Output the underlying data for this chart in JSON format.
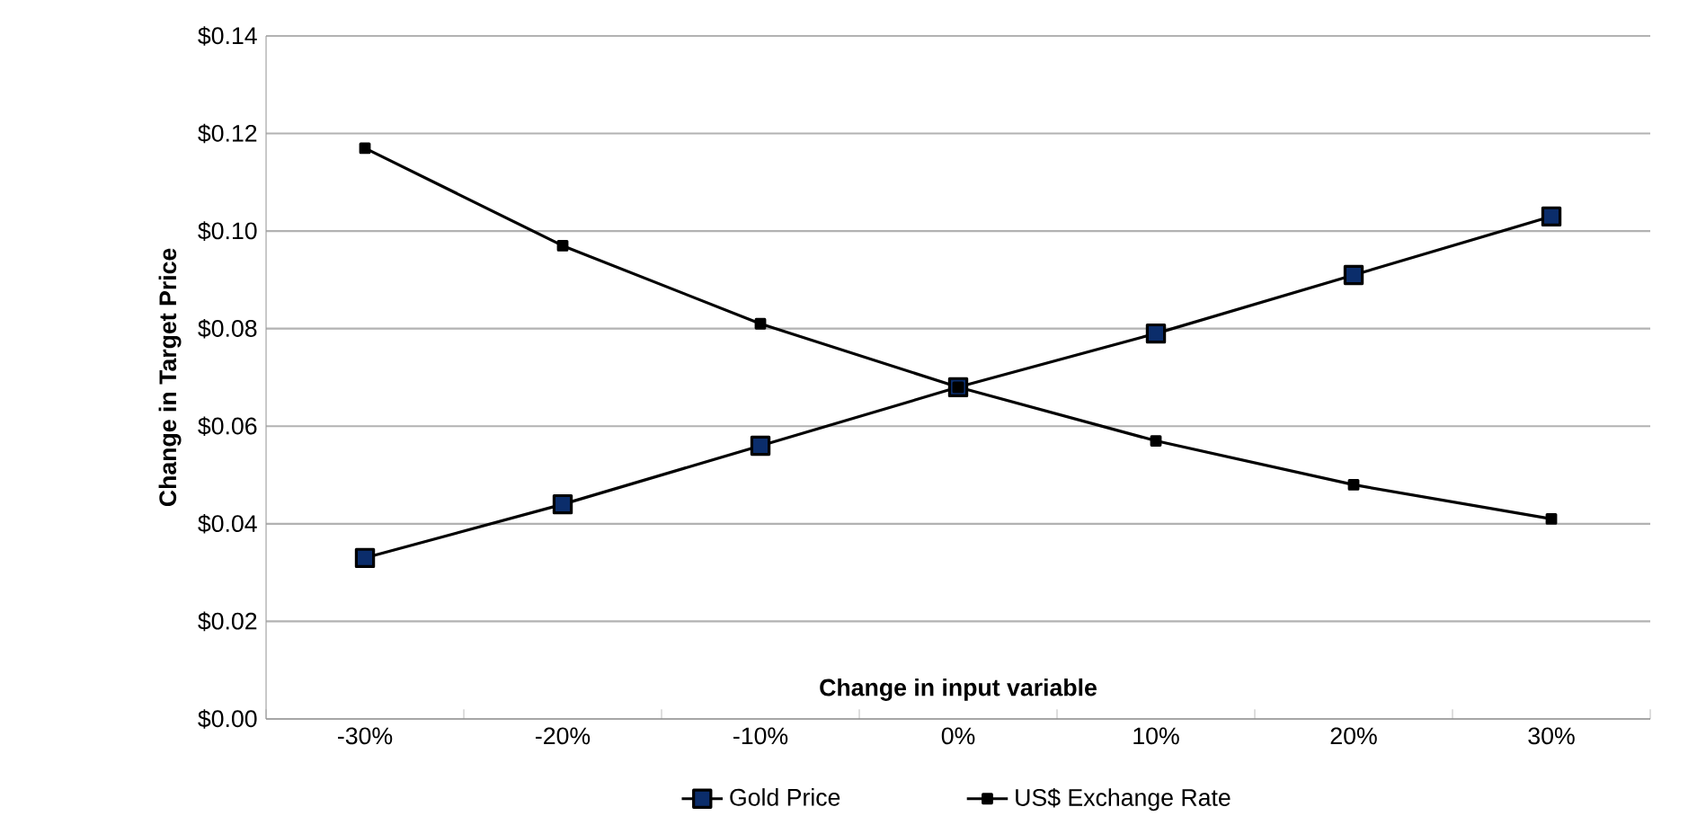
{
  "chart_data": {
    "type": "line",
    "xlabel": "Change in input variable",
    "ylabel": "Change in Target Price",
    "categories": [
      "-30%",
      "-20%",
      "-10%",
      "0%",
      "10%",
      "20%",
      "30%"
    ],
    "series": [
      {
        "name": "Gold Price",
        "color": "#0b2d6b",
        "values": [
          0.033,
          0.044,
          0.056,
          0.068,
          0.079,
          0.091,
          0.103
        ]
      },
      {
        "name": "US$ Exchange Rate",
        "color": "#000000",
        "values": [
          0.117,
          0.097,
          0.081,
          0.068,
          0.057,
          0.048,
          0.041
        ]
      }
    ],
    "ylim": [
      0,
      0.14
    ],
    "yticks": [
      {
        "value": 0,
        "label": "$0.00"
      },
      {
        "value": 0.02,
        "label": "$0.02"
      },
      {
        "value": 0.04,
        "label": "$0.04"
      },
      {
        "value": 0.06,
        "label": "$0.06"
      },
      {
        "value": 0.08,
        "label": "$0.08"
      },
      {
        "value": 0.1,
        "label": "$0.10"
      },
      {
        "value": 0.12,
        "label": "$0.12"
      },
      {
        "value": 0.14,
        "label": "$0.14"
      }
    ],
    "grid": "y",
    "legend": "bottom",
    "marker": "square",
    "line_style": "solid"
  }
}
